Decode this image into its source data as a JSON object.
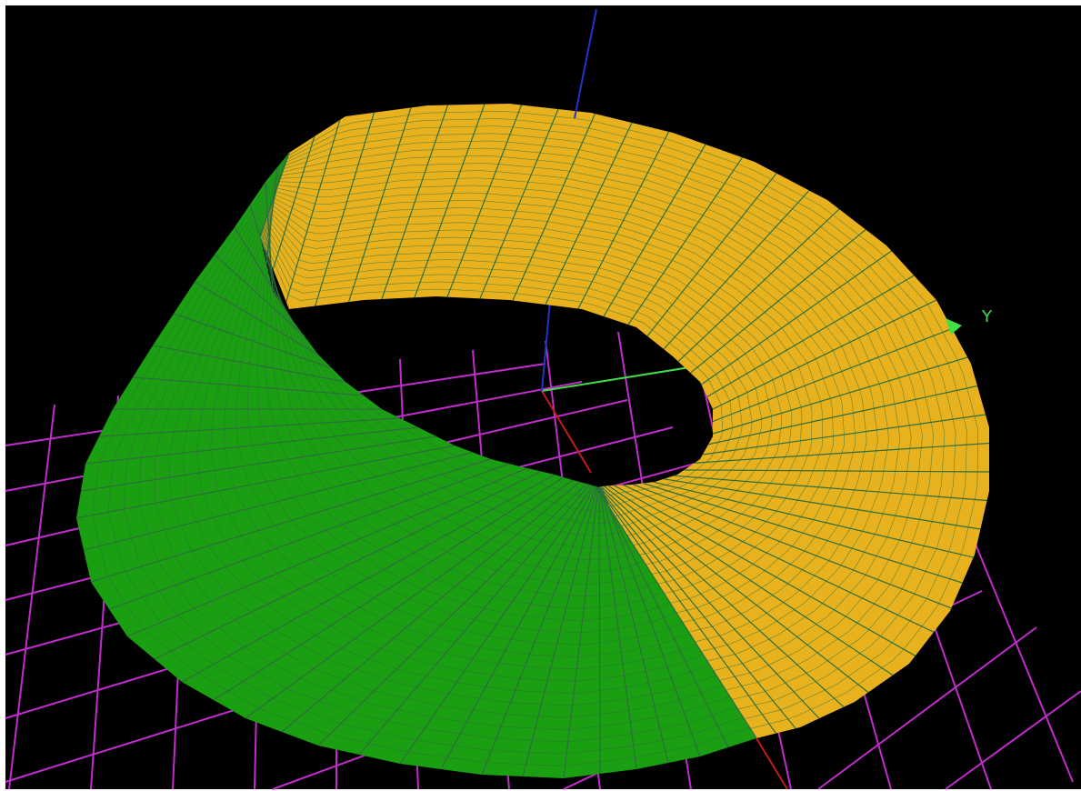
{
  "viewport": {
    "background_color": "#000000",
    "grid_color": "#c22ccd"
  },
  "axes": {
    "x": {
      "color": "#c41a1a"
    },
    "y": {
      "color": "#3fe04a",
      "label": "Y",
      "marker_icon": "triangle-marker-icon"
    },
    "z": {
      "color": "#2233c8"
    }
  },
  "surface": {
    "shape": "mobius-strip",
    "face_colors": {
      "front": "#1a9e12",
      "back": "#e8b21e"
    },
    "mesh_line_color": "#2d6e3c"
  }
}
